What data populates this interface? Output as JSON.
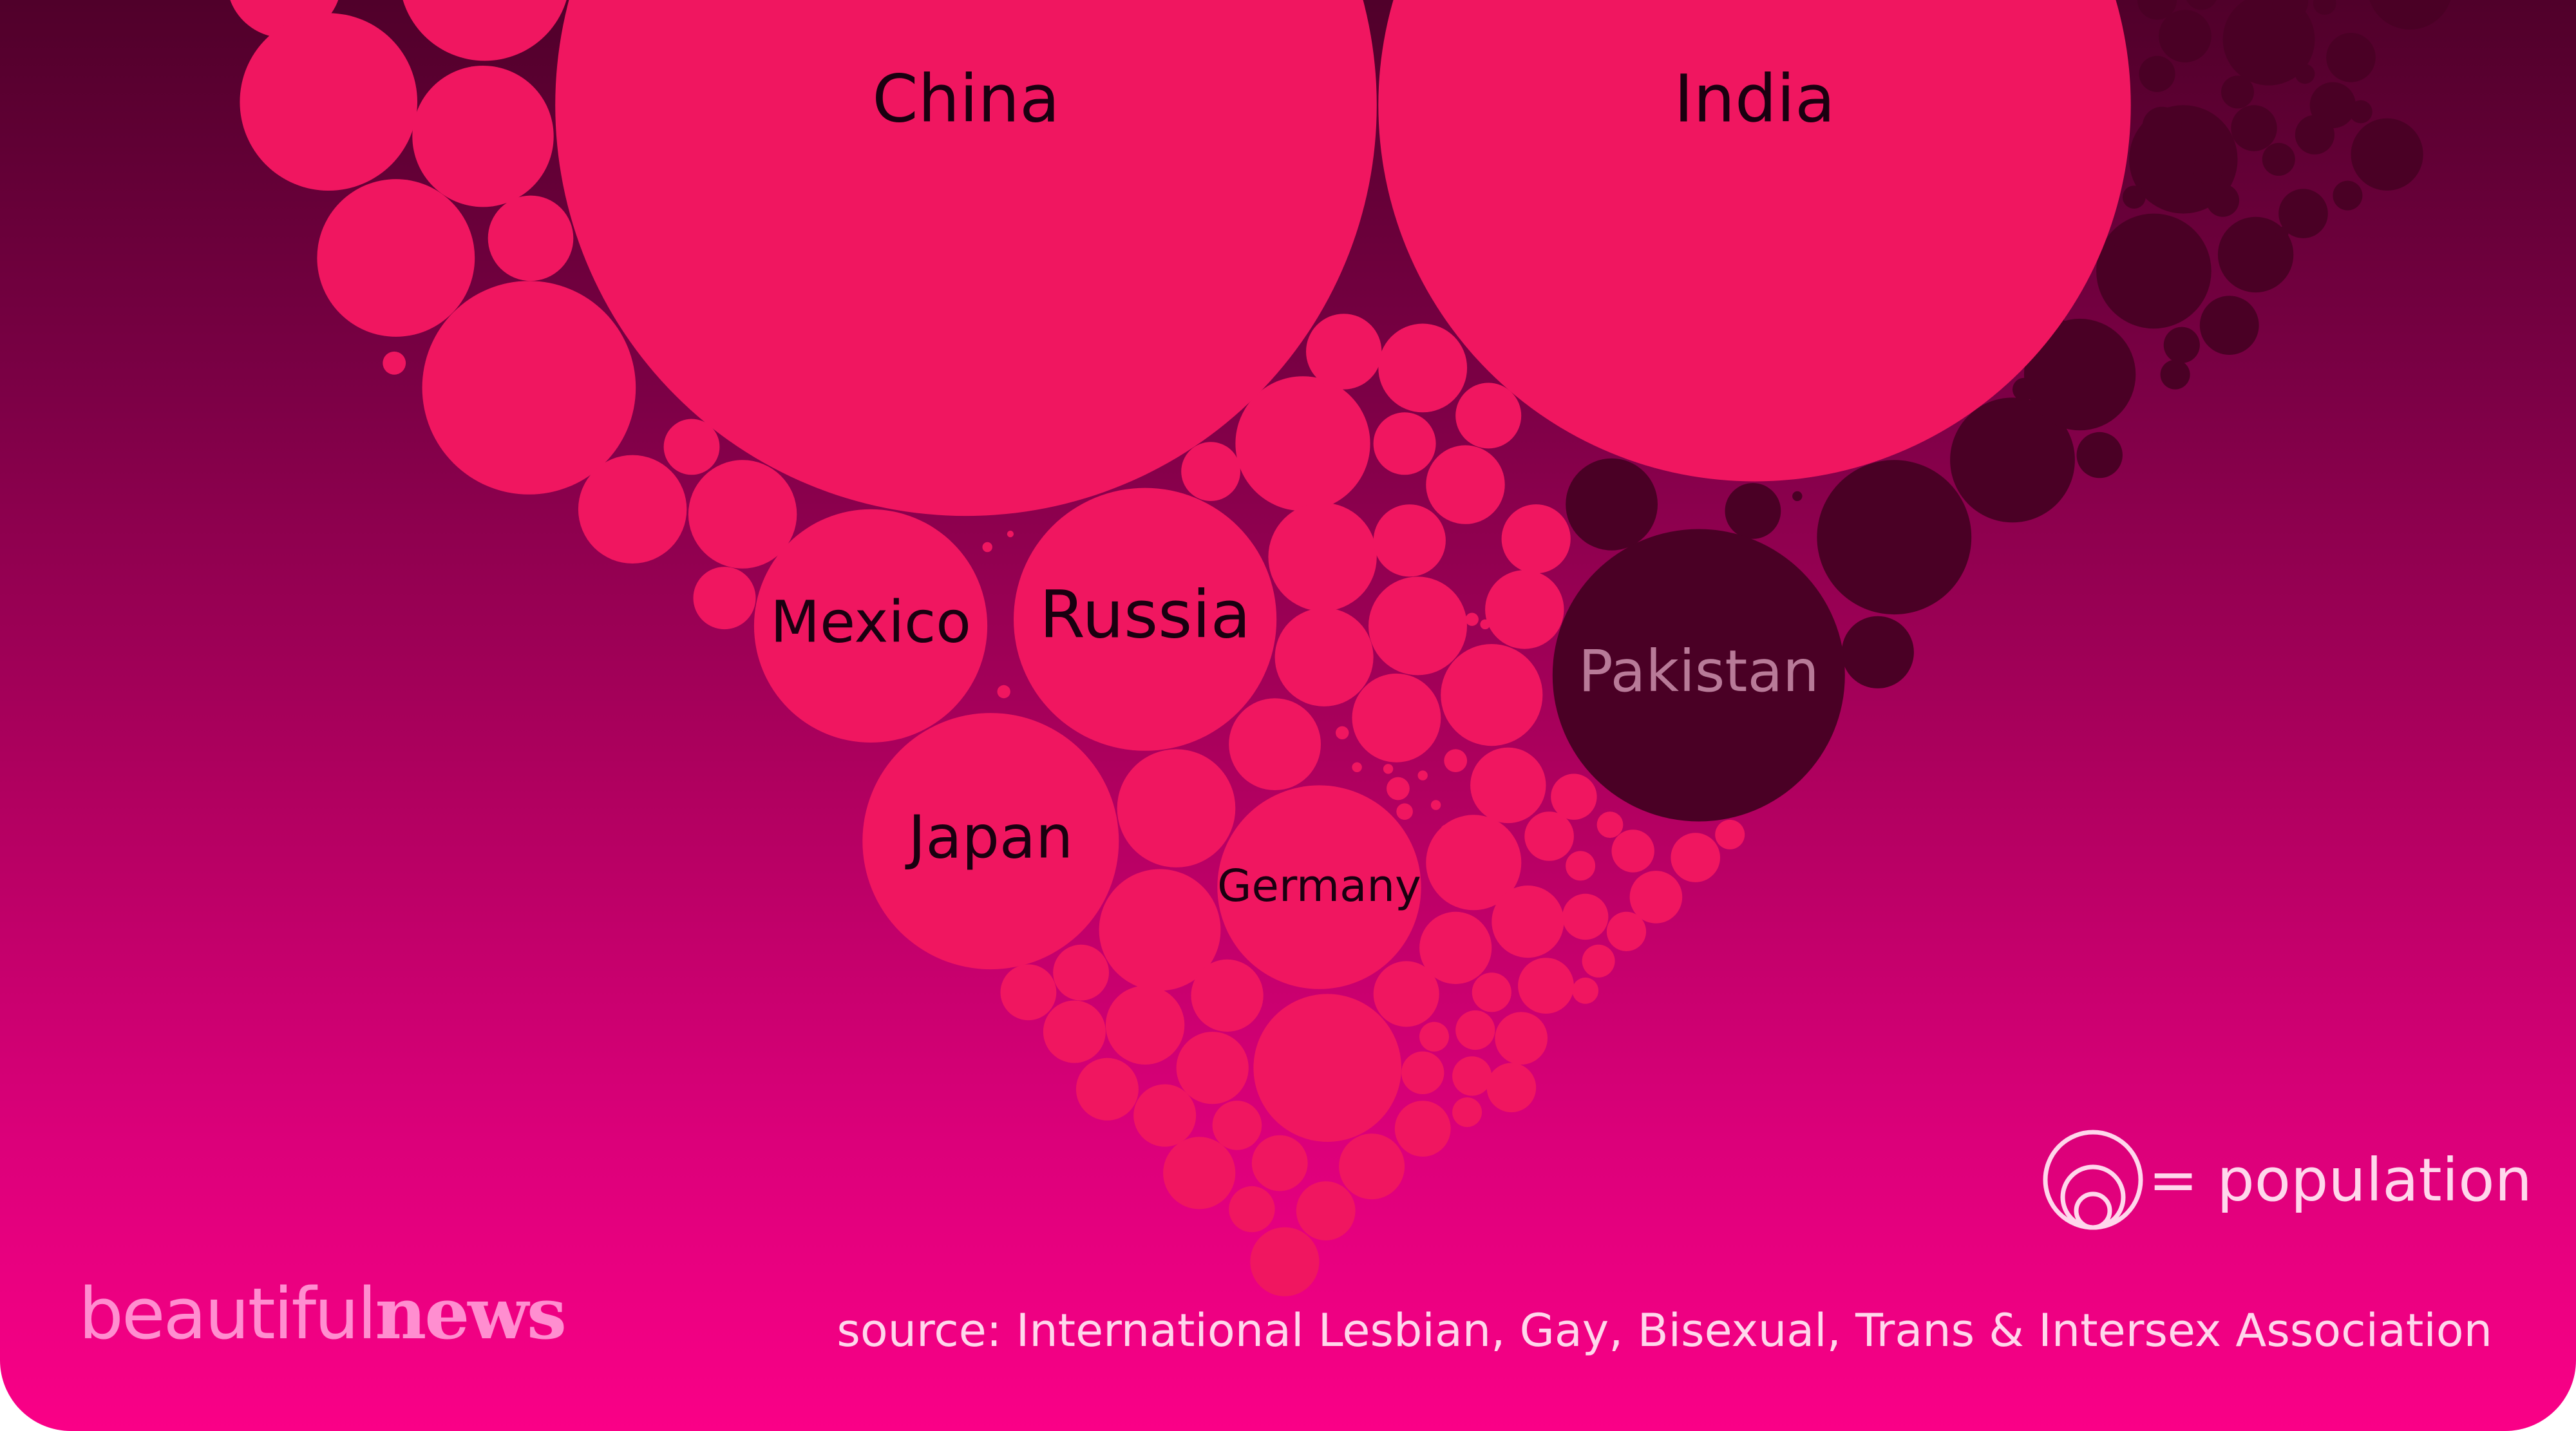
{
  "chart_data": {
    "type": "packed-bubble",
    "legend": {
      "text": "= population"
    },
    "source": "source: International Lesbian, Gay, Bisexual, Trans & Intersex Association",
    "brand": {
      "part1": "beautiful",
      "part2": "news"
    },
    "colors": {
      "highlight": "#f01660",
      "muted": "#4a0025",
      "label_dark": "#1a0010",
      "label_muted": "#b87a98"
    },
    "categories": [
      "highlighted",
      "muted"
    ],
    "labeled_countries": [
      {
        "name": "China",
        "category": "highlighted"
      },
      {
        "name": "India",
        "category": "highlighted"
      },
      {
        "name": "Russia",
        "category": "highlighted"
      },
      {
        "name": "Mexico",
        "category": "highlighted"
      },
      {
        "name": "Japan",
        "category": "highlighted"
      },
      {
        "name": "Germany",
        "category": "highlighted"
      },
      {
        "name": "Pakistan",
        "category": "muted"
      }
    ]
  }
}
